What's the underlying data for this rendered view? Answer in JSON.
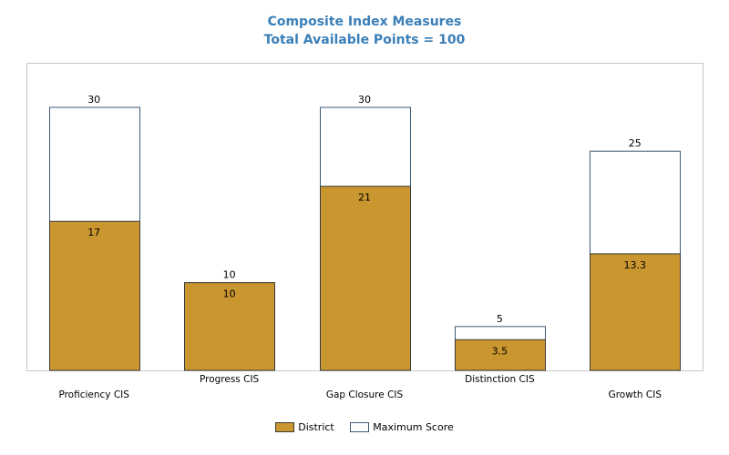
{
  "chart_data": {
    "type": "bar",
    "title": "Composite Index Measures",
    "subtitle": "Total Available Points = 100",
    "categories": [
      "Proficiency CIS",
      "Progress CIS",
      "Gap Closure CIS",
      "Distinction CIS",
      "Growth CIS"
    ],
    "series": [
      {
        "name": "District",
        "values": [
          17,
          10,
          21,
          3.5,
          13.3
        ],
        "color": "#c9962f"
      },
      {
        "name": "Maximum Score",
        "values": [
          30,
          10,
          30,
          5,
          25
        ],
        "color": "#ffffff",
        "stroke": "#3b5a7a"
      }
    ],
    "ylim": [
      0,
      34
    ],
    "grid": false,
    "legend_position": "bottom-center",
    "label_stagger": true
  }
}
